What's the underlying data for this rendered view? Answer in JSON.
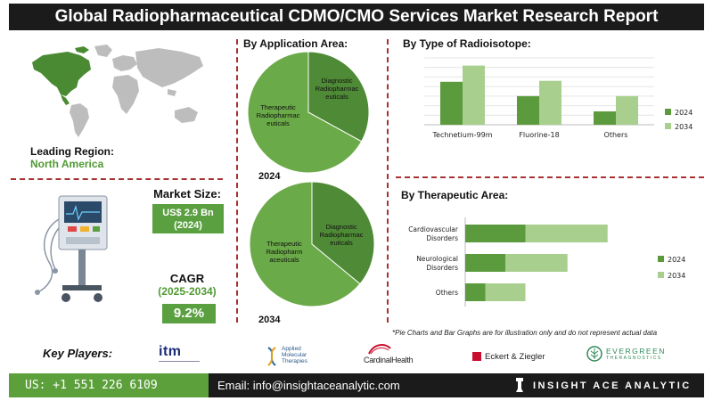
{
  "title": "Global Radiopharmaceutical CDMO/CMO Services Market Research Report",
  "colors": {
    "dark_green": "#5c9b3d",
    "light_green": "#a9cf8e",
    "pie_dark": "#4f8a36",
    "pie_light": "#6aaa48",
    "accent_red": "#a83232",
    "box_green": "#5aa040"
  },
  "leading_region": {
    "label": "Leading Region:",
    "value": "North America"
  },
  "market_size": {
    "label": "Market Size:",
    "value": "US$ 2.9 Bn",
    "year": "(2024)"
  },
  "cagr": {
    "label": "CAGR",
    "period": "(2025-2034)",
    "value": "9.2%"
  },
  "application_area": {
    "title": "By Application Area:",
    "pie_2024": {
      "year": "2024",
      "slices": [
        {
          "label": "Diagnostic Radiopharmac euticals",
          "value": 33
        },
        {
          "label": "Therapeutic Radiopharmac euticals",
          "value": 67
        }
      ]
    },
    "pie_2034": {
      "year": "2034",
      "slices": [
        {
          "label": "Diagnostic Radiopharmac euticals",
          "value": 36
        },
        {
          "label": "Therapeutic Radiopharm aceuticals",
          "value": 64
        }
      ]
    }
  },
  "chart_data": [
    {
      "type": "pie",
      "title": "By Application Area: 2024",
      "categories": [
        "Diagnostic Radiopharmaceuticals",
        "Therapeutic Radiopharmaceuticals"
      ],
      "values": [
        33,
        67
      ]
    },
    {
      "type": "pie",
      "title": "By Application Area: 2034",
      "categories": [
        "Diagnostic Radiopharmaceuticals",
        "Therapeutic Radiopharmaceuticals"
      ],
      "values": [
        36,
        64
      ]
    },
    {
      "type": "bar",
      "title": "By Type of Radioisotope:",
      "categories": [
        "Technetium-99m",
        "Fluorine-18",
        "Others"
      ],
      "series": [
        {
          "name": "2024",
          "values": [
            45,
            30,
            14
          ]
        },
        {
          "name": "2034",
          "values": [
            62,
            46,
            30
          ]
        }
      ],
      "ylim": [
        0,
        70
      ]
    },
    {
      "type": "bar",
      "orientation": "horizontal",
      "title": "By Therapeutic Area:",
      "categories": [
        "Cardiovascular Disorders",
        "Neurological Disorders",
        "Others"
      ],
      "series": [
        {
          "name": "2024",
          "values": [
            30,
            20,
            10
          ]
        },
        {
          "name": "2034",
          "values": [
            41,
            31,
            20
          ]
        }
      ],
      "xlim": [
        0,
        80
      ]
    }
  ],
  "radioisotope": {
    "title": "By Type of Radioisotope:",
    "categories": [
      "Technetium-99m",
      "Fluorine-18",
      "Others"
    ],
    "legend": [
      "2024",
      "2034"
    ]
  },
  "therapeutic": {
    "title": "By Therapeutic Area:",
    "categories": [
      [
        "Cardiovascular",
        "Disorders"
      ],
      [
        "Neurological",
        "Disorders"
      ],
      [
        "Others"
      ]
    ],
    "legend": [
      "2024",
      "2034"
    ]
  },
  "disclaimer": "*Pie Charts and Bar Graphs are for illustration only and do not represent actual data",
  "key_players": {
    "label": "Key Players:",
    "logos": {
      "itm": "itm",
      "amt": [
        "Applied",
        "Molecular",
        "Therapies"
      ],
      "cardinal": "CardinalHealth",
      "eckert": "Eckert & Ziegler",
      "evergreen": [
        "EVERGREEN",
        "THERAGNOSTICS"
      ]
    }
  },
  "footer": {
    "phone": "US: +1 551 226 6109",
    "email": "Email: info@insightaceanalytic.com",
    "brand": "INSIGHT ACE ANALYTIC"
  }
}
